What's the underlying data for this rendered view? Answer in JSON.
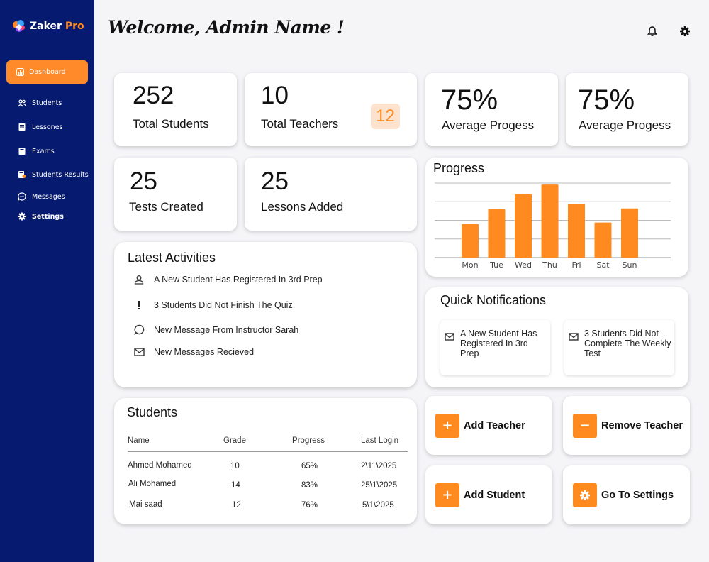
{
  "app": {
    "brand_main": "Zaker",
    "brand_accent": "Pro"
  },
  "sidebar": {
    "active": {
      "label": "Dashboard",
      "icon": "dashboard-icon"
    },
    "items": [
      {
        "label": "Students",
        "icon": "users-icon"
      },
      {
        "label": "Lessones",
        "icon": "book-icon"
      },
      {
        "label": "Exams",
        "icon": "notebook-icon"
      },
      {
        "label": "Students Results",
        "icon": "results-icon"
      },
      {
        "label": "Messages",
        "icon": "chat-icon"
      },
      {
        "label": "Settings",
        "icon": "gear-icon"
      }
    ]
  },
  "header": {
    "welcome": "Welcome, Admin Name !"
  },
  "stats": {
    "total_students": {
      "value": "252",
      "label": "Total Students"
    },
    "total_teachers": {
      "value": "10",
      "label": "Total Teachers",
      "badge": "12"
    },
    "avg1": {
      "value": "75%",
      "label": "Average Progess"
    },
    "avg2": {
      "value": "75%",
      "label": "Average Progess"
    },
    "tests": {
      "value": "25",
      "label": "Tests Created"
    },
    "lessons": {
      "value": "25",
      "label": "Lessons Added"
    }
  },
  "activities": {
    "title": "Latest Activities",
    "items": [
      {
        "text": "A New Student Has Registered In 3rd Prep",
        "icon": "user-icon"
      },
      {
        "text": "3 Students Did Not Finish The Quiz",
        "icon": "exclamation-icon"
      },
      {
        "text": "New Message From Instructor Sarah",
        "icon": "chat-icon"
      },
      {
        "text": "New Messages Recieved",
        "icon": "mail-icon"
      }
    ]
  },
  "progress_title": "Progress",
  "chart_data": {
    "type": "bar",
    "title": "Progress",
    "categories": [
      "Mon",
      "Tue",
      "Wed",
      "Thu",
      "Fri",
      "Sat",
      "Sun"
    ],
    "values": [
      45,
      65,
      85,
      98,
      72,
      47,
      66
    ],
    "ylim": [
      0,
      100
    ],
    "grid": true,
    "color": "#ff8a1f"
  },
  "notifications": {
    "title": "Quick Notifications",
    "items": [
      {
        "text": "A New Student Has Registered In 3rd Prep",
        "icon": "mail-icon"
      },
      {
        "text": "3 Students Did Not Complete The Weekly Test",
        "icon": "mail-icon"
      }
    ]
  },
  "students": {
    "title": "Students",
    "headers": [
      "Name",
      "Grade",
      "Progress",
      "Last Login"
    ],
    "rows": [
      [
        "Ahmed Mohamed",
        "10",
        "65%",
        "2\\11\\2025"
      ],
      [
        "Ali Mohamed",
        "14",
        "83%",
        "25\\1\\2025"
      ],
      [
        "Mai saad",
        "12",
        "76%",
        "5\\1\\2025"
      ]
    ]
  },
  "actions": {
    "add_teacher": {
      "label": "Add Teacher",
      "symbol": "+"
    },
    "remove_teacher": {
      "label": "Remove Teacher",
      "symbol": "−"
    },
    "add_student": {
      "label": "Add Student",
      "symbol": "+"
    },
    "go_settings": {
      "label": "Go To Settings",
      "icon": "gear-icon"
    }
  },
  "colors": {
    "sidebar": "#061a70",
    "accent": "#ff8a1f",
    "background": "#f5f5f8"
  }
}
